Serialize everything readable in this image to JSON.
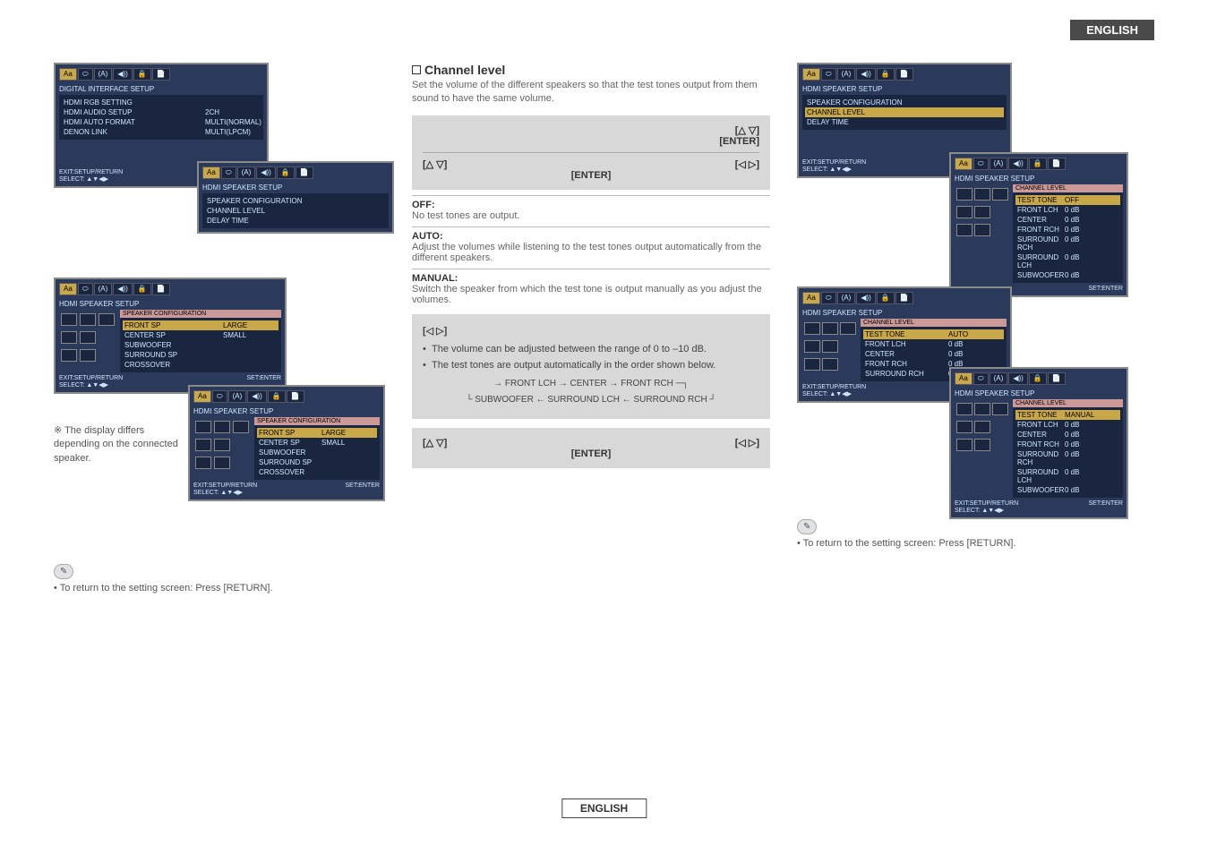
{
  "ui": {
    "langTab": "ENGLISH",
    "footerTab": "ENGLISH"
  },
  "left": {
    "panel1": {
      "title": "DIGITAL INTERFACE SETUP",
      "rows": [
        {
          "k": "HDMI RGB SETTING",
          "v": ""
        },
        {
          "k": "HDMI AUDIO SETUP",
          "v": "2CH"
        },
        {
          "k": "HDMI AUTO FORMAT",
          "v": "MULTI(NORMAL)"
        },
        {
          "k": "DENON LINK",
          "v": "MULTI(LPCM)"
        }
      ],
      "footL": "EXIT:SETUP/RETURN",
      "footL2": "SELECT: ▲▼◀▶"
    },
    "panel1b": {
      "title": "HDMI SPEAKER SETUP",
      "rows": [
        {
          "k": "SPEAKER CONFIGURATION",
          "v": ""
        },
        {
          "k": "CHANNEL LEVEL",
          "v": ""
        },
        {
          "k": "DELAY TIME",
          "v": ""
        }
      ]
    },
    "panel2": {
      "title": "HDMI SPEAKER SETUP",
      "sub": "SPEAKER CONFIGURATION",
      "rows": [
        {
          "k": "FRONT SP",
          "v": "LARGE",
          "hl": true
        },
        {
          "k": "CENTER SP",
          "v": "SMALL"
        },
        {
          "k": "SUBWOOFER",
          "v": ""
        },
        {
          "k": "SURROUND SP",
          "v": ""
        },
        {
          "k": "CROSSOVER",
          "v": ""
        }
      ],
      "footR": "SET:ENTER",
      "footL": "EXIT:SETUP/RETURN",
      "footL2": "SELECT: ▲▼◀▶"
    },
    "panel2b": {
      "title": "HDMI SPEAKER SETUP",
      "sub": "SPEAKER CONFIGURATION",
      "rows": [
        {
          "k": "FRONT SP",
          "v": "LARGE",
          "hl": true
        },
        {
          "k": "CENTER SP",
          "v": "SMALL"
        },
        {
          "k": "SUBWOOFER",
          "v": ""
        },
        {
          "k": "SURROUND SP",
          "v": ""
        },
        {
          "k": "CROSSOVER",
          "v": ""
        }
      ],
      "footR": "SET:ENTER",
      "footL": "EXIT:SETUP/RETURN",
      "footL2": "SELECT: ▲▼◀▶"
    },
    "note": "※ The display differs depending on the connected speaker.",
    "returnNote": "• To return to the setting screen: Press [RETURN]."
  },
  "mid": {
    "title": "Channel level",
    "intro": "Set the volume of the different speakers so that the test tones output from them sound to have the same volume.",
    "box1": {
      "r1": "[△ ▽]",
      "r2": "[ENTER]",
      "r3l": "[△ ▽]",
      "r3r": "[◁ ▷]",
      "r4": "[ENTER]"
    },
    "opts": [
      {
        "h": "OFF:",
        "b": "No test tones are output."
      },
      {
        "h": "AUTO:",
        "b": "Adjust the volumes while listening to the test tones output automatically from the different speakers."
      },
      {
        "h": "MANUAL:",
        "b": "Switch the speaker from which the test tone is output manually as you adjust the volumes."
      }
    ],
    "gray": {
      "arrows": "[◁ ▷]",
      "b1": "The volume can be adjusted between the range of 0 to –10 dB.",
      "b2": "The test tones are output automatically in the order shown below.",
      "flow1": "FRONT LCH → CENTER → FRONT RCH",
      "flow2": "SUBWOOFER ← SURROUND LCH ← SURROUND RCH"
    },
    "box2": {
      "l": "[△ ▽]",
      "r": "[◁ ▷]",
      "c": "[ENTER]"
    }
  },
  "right": {
    "panel1": {
      "title": "HDMI SPEAKER SETUP",
      "rows": [
        {
          "k": "SPEAKER CONFIGURATION",
          "v": ""
        },
        {
          "k": "CHANNEL LEVEL",
          "v": "",
          "hl": true
        },
        {
          "k": "DELAY TIME",
          "v": ""
        }
      ],
      "footL": "EXIT:SETUP/RETURN",
      "footL2": "SELECT: ▲▼◀▶"
    },
    "panel1b": {
      "title": "HDMI SPEAKER SETUP",
      "sub": "CHANNEL LEVEL",
      "rows": [
        {
          "k": "TEST TONE",
          "v": "OFF",
          "hl": true
        },
        {
          "k": "FRONT LCH",
          "v": "0 dB"
        },
        {
          "k": "CENTER",
          "v": "0 dB"
        },
        {
          "k": "FRONT RCH",
          "v": "0 dB"
        },
        {
          "k": "SURROUND RCH",
          "v": "0 dB"
        },
        {
          "k": "SURROUND LCH",
          "v": "0 dB"
        },
        {
          "k": "SUBWOOFER",
          "v": "0 dB"
        }
      ],
      "footR": "SET:ENTER"
    },
    "panel2": {
      "title": "HDMI SPEAKER SETUP",
      "sub": "CHANNEL LEVEL",
      "rows": [
        {
          "k": "TEST TONE",
          "v": "AUTO",
          "hl": true
        },
        {
          "k": "FRONT LCH",
          "v": "0 dB"
        },
        {
          "k": "CENTER",
          "v": "0 dB"
        },
        {
          "k": "FRONT RCH",
          "v": "0 dB"
        },
        {
          "k": "SURROUND RCH",
          "v": "0 dB"
        }
      ],
      "footL": "EXIT:SETUP/RETURN",
      "footL2": "SELECT: ▲▼◀▶"
    },
    "panel2b": {
      "title": "HDMI SPEAKER SETUP",
      "sub": "CHANNEL LEVEL",
      "rows": [
        {
          "k": "TEST TONE",
          "v": "MANUAL",
          "hl": true
        },
        {
          "k": "FRONT LCH",
          "v": "0 dB"
        },
        {
          "k": "CENTER",
          "v": "0 dB"
        },
        {
          "k": "FRONT RCH",
          "v": "0 dB"
        },
        {
          "k": "SURROUND RCH",
          "v": "0 dB"
        },
        {
          "k": "SURROUND LCH",
          "v": "0 dB"
        },
        {
          "k": "SUBWOOFER",
          "v": "0 dB"
        }
      ],
      "footR": "SET:ENTER",
      "footL": "EXIT:SETUP/RETURN",
      "footL2": "SELECT: ▲▼◀▶"
    },
    "returnNote": "• To return to the setting screen: Press [RETURN]."
  },
  "tabs": [
    "Aa",
    "⬭",
    "(A)",
    "◀))",
    "🔒",
    "📄"
  ]
}
